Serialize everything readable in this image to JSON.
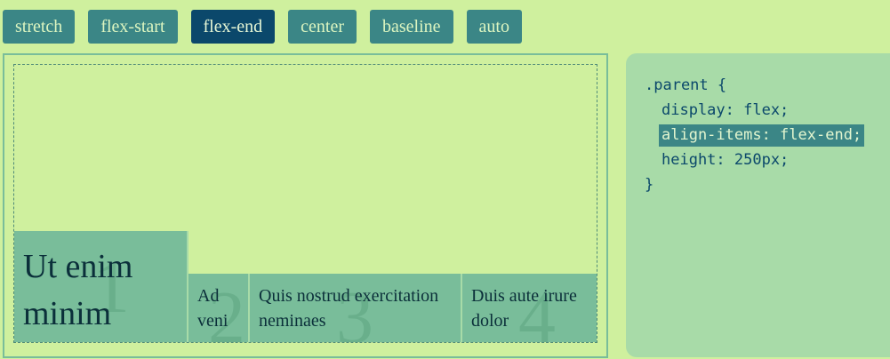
{
  "buttons": [
    {
      "label": "stretch",
      "active": false
    },
    {
      "label": "flex-start",
      "active": false
    },
    {
      "label": "flex-end",
      "active": true
    },
    {
      "label": "center",
      "active": false
    },
    {
      "label": "baseline",
      "active": false
    },
    {
      "label": "auto",
      "active": false
    }
  ],
  "demo": {
    "items": [
      {
        "number": "1",
        "text": "Ut enim minim"
      },
      {
        "number": "2",
        "text": "Ad veni"
      },
      {
        "number": "3",
        "text": "Quis nostrud exercitation neminaes"
      },
      {
        "number": "4",
        "text": "Duis aute irure dolor"
      }
    ]
  },
  "code": {
    "selector": ".parent {",
    "line1": "display: flex;",
    "line2": "align-items: flex-end;",
    "line3": "height: 250px;",
    "close": "}"
  },
  "colors": {
    "background": "#cff09e",
    "button": "#3b8686",
    "button_active": "#0b486b",
    "item": "#79bd9a",
    "code_panel": "#a8dba8"
  }
}
